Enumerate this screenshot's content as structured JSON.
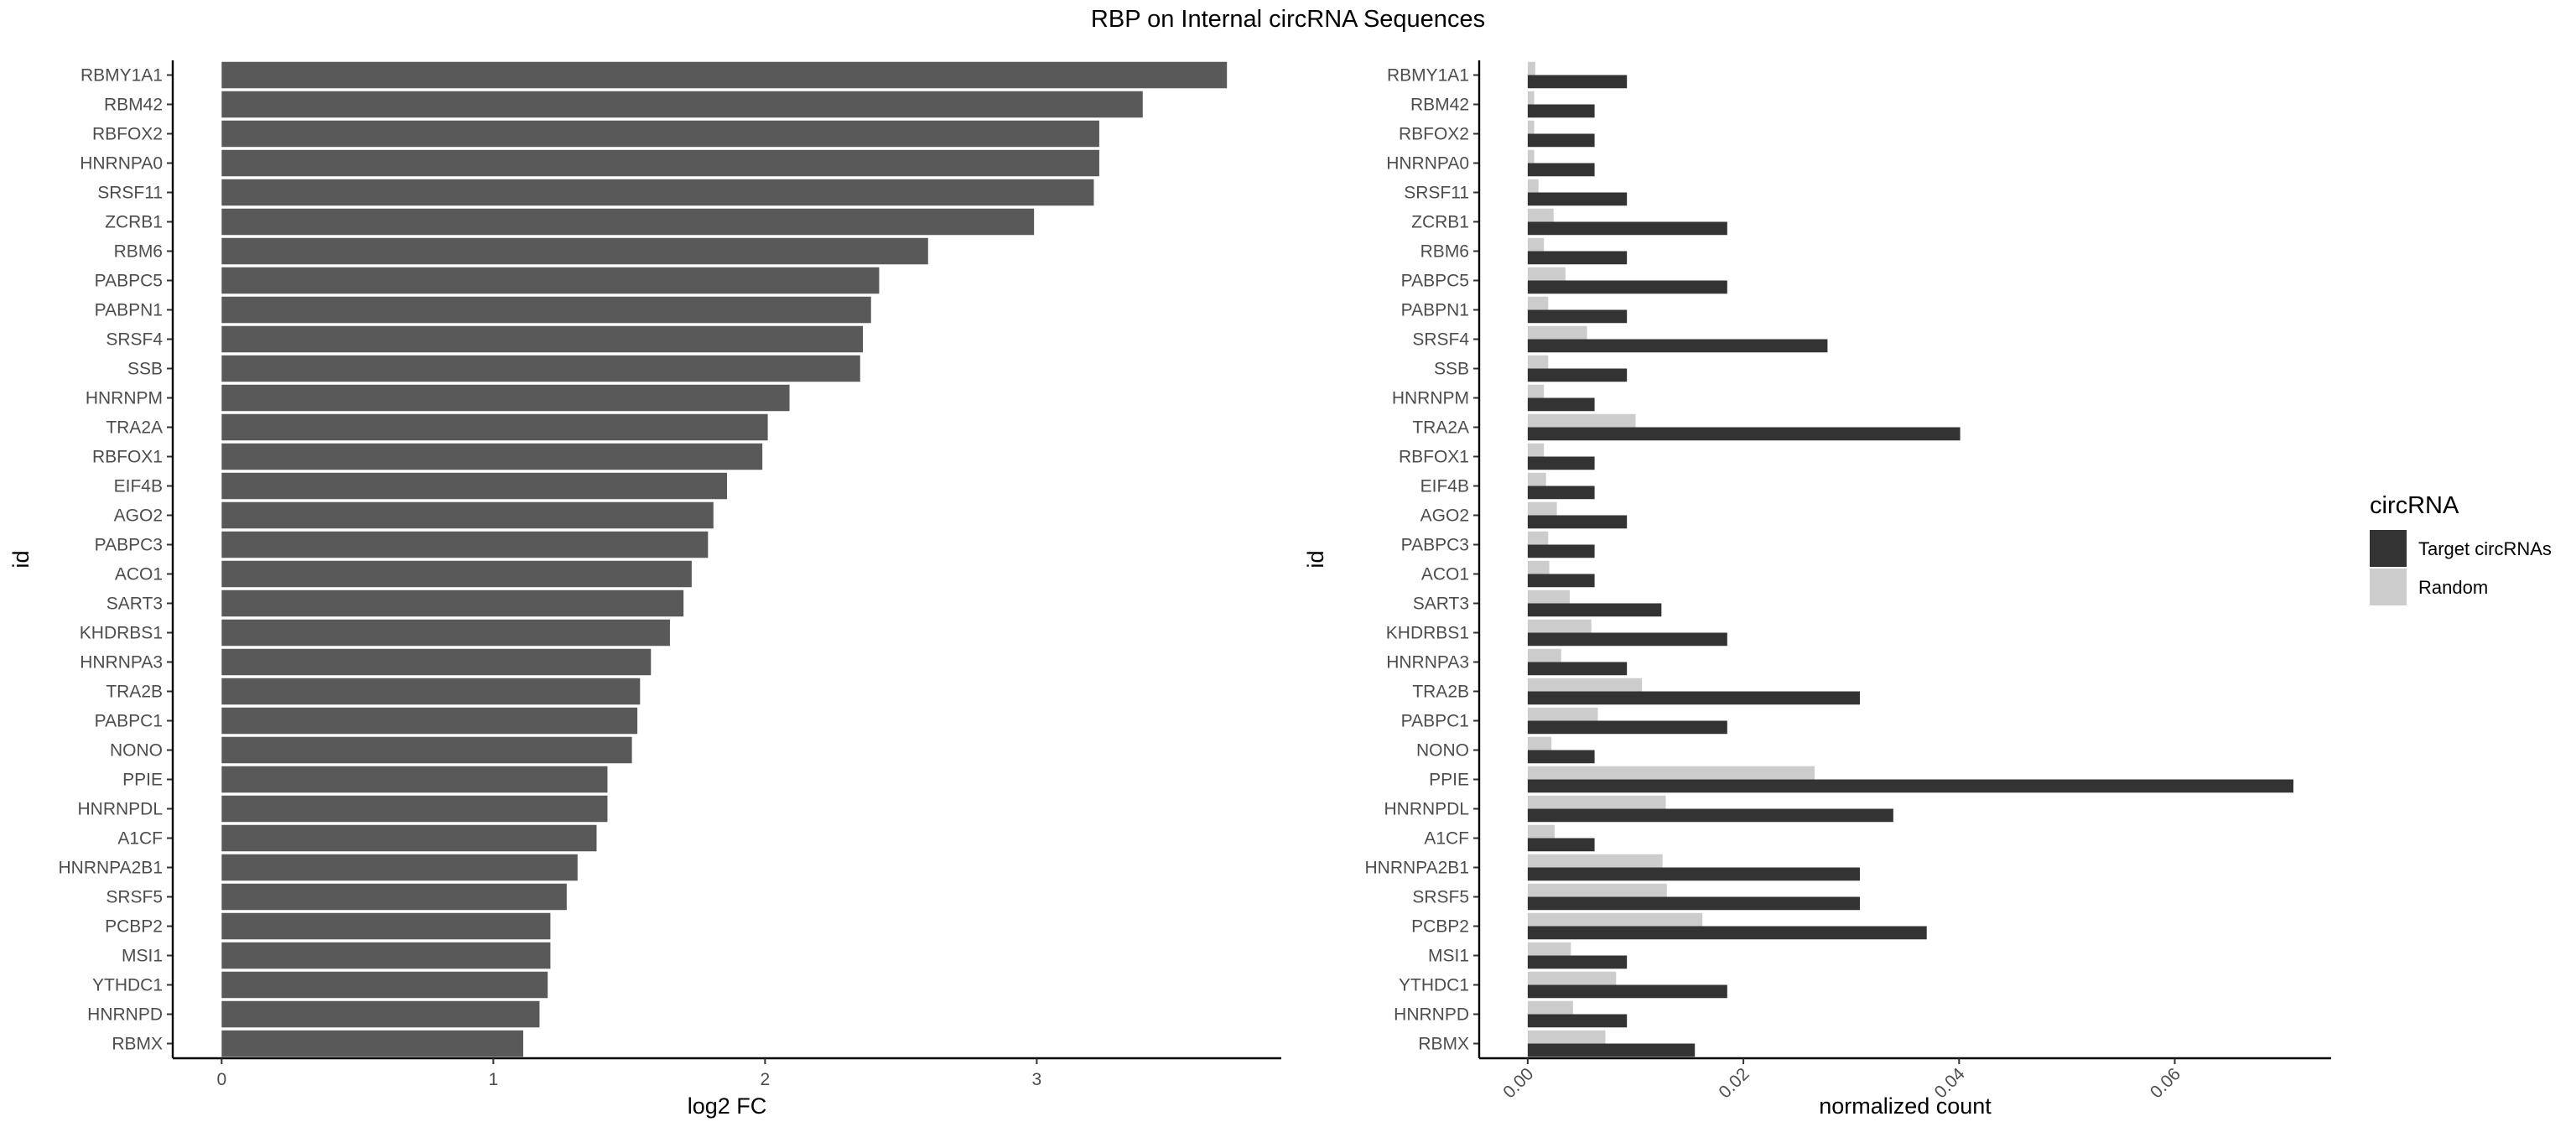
{
  "title": "RBP on Internal circRNA Sequences",
  "chart_data": [
    {
      "type": "bar",
      "orientation": "horizontal",
      "xlabel": "log2 FC",
      "ylabel": "id",
      "xlim": [
        -0.18,
        3.9
      ],
      "xticks": [
        0,
        1,
        2,
        3
      ],
      "grid": false,
      "bar_color": "#595959",
      "categories": [
        "RBMY1A1",
        "RBM42",
        "RBFOX2",
        "HNRNPA0",
        "SRSF11",
        "ZCRB1",
        "RBM6",
        "PABPC5",
        "PABPN1",
        "SRSF4",
        "SSB",
        "HNRNPM",
        "TRA2A",
        "RBFOX1",
        "EIF4B",
        "AGO2",
        "PABPC3",
        "ACO1",
        "SART3",
        "KHDRBS1",
        "HNRNPA3",
        "TRA2B",
        "PABPC1",
        "NONO",
        "PPIE",
        "HNRNPDL",
        "A1CF",
        "HNRNPA2B1",
        "SRSF5",
        "PCBP2",
        "MSI1",
        "YTHDC1",
        "HNRNPD",
        "RBMX"
      ],
      "values": [
        3.7,
        3.39,
        3.23,
        3.23,
        3.21,
        2.99,
        2.6,
        2.42,
        2.39,
        2.36,
        2.35,
        2.09,
        2.01,
        1.99,
        1.86,
        1.81,
        1.79,
        1.73,
        1.7,
        1.65,
        1.58,
        1.54,
        1.53,
        1.51,
        1.42,
        1.42,
        1.38,
        1.31,
        1.27,
        1.21,
        1.21,
        1.2,
        1.17,
        1.11
      ]
    },
    {
      "type": "bar",
      "orientation": "horizontal",
      "xlabel": "normalized count",
      "ylabel": "id",
      "xlim": [
        -0.0045,
        0.0745
      ],
      "xticks": [
        0.0,
        0.02,
        0.04,
        0.06
      ],
      "xtick_labels": [
        "0.00",
        "0.02",
        "0.04",
        "0.06"
      ],
      "grid": false,
      "legend": {
        "title": "circRNA",
        "position": "right"
      },
      "categories": [
        "RBMY1A1",
        "RBM42",
        "RBFOX2",
        "HNRNPA0",
        "SRSF11",
        "ZCRB1",
        "RBM6",
        "PABPC5",
        "PABPN1",
        "SRSF4",
        "SSB",
        "HNRNPM",
        "TRA2A",
        "RBFOX1",
        "EIF4B",
        "AGO2",
        "PABPC3",
        "ACO1",
        "SART3",
        "KHDRBS1",
        "HNRNPA3",
        "TRA2B",
        "PABPC1",
        "NONO",
        "PPIE",
        "HNRNPDL",
        "A1CF",
        "HNRNPA2B1",
        "SRSF5",
        "PCBP2",
        "MSI1",
        "YTHDC1",
        "HNRNPD",
        "RBMX"
      ],
      "series": [
        {
          "name": "Target circRNAs",
          "color": "#333333",
          "values": [
            0.0092,
            0.0062,
            0.0062,
            0.0062,
            0.0092,
            0.0185,
            0.0092,
            0.0185,
            0.0092,
            0.0278,
            0.0092,
            0.0062,
            0.0401,
            0.0062,
            0.0062,
            0.0092,
            0.0062,
            0.0062,
            0.0124,
            0.0185,
            0.0092,
            0.0308,
            0.0185,
            0.0062,
            0.071,
            0.0339,
            0.0062,
            0.0308,
            0.0308,
            0.037,
            0.0092,
            0.0185,
            0.0092,
            0.0155
          ]
        },
        {
          "name": "Random",
          "color": "#cccccc",
          "values": [
            0.0007,
            0.0006,
            0.0006,
            0.0006,
            0.001,
            0.0024,
            0.0015,
            0.0035,
            0.0019,
            0.0055,
            0.0019,
            0.0015,
            0.01,
            0.0015,
            0.0017,
            0.0027,
            0.0019,
            0.002,
            0.0039,
            0.0059,
            0.0031,
            0.0106,
            0.0065,
            0.0022,
            0.0266,
            0.0128,
            0.0025,
            0.0125,
            0.0129,
            0.0162,
            0.004,
            0.0082,
            0.0042,
            0.0072
          ]
        }
      ]
    }
  ]
}
